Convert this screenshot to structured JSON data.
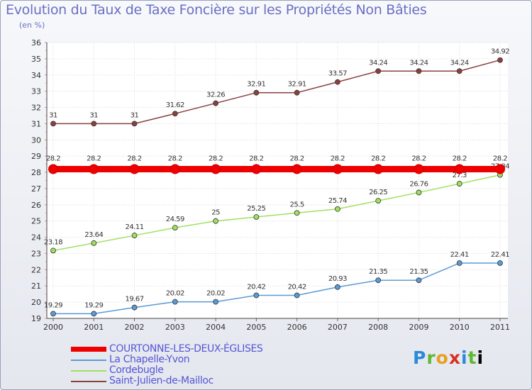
{
  "title": "Evolution du Taux de Taxe Foncière sur les Propriétés Non Bâties",
  "unit": "(en %)",
  "logo": "Proxiti",
  "chart_data": {
    "type": "line",
    "title": "Evolution du Taux de Taxe Foncière sur les Propriétés Non Bâties",
    "ylabel": "(en %)",
    "xlabel": "",
    "ylim": [
      19,
      36
    ],
    "yticks": [
      19,
      20,
      21,
      22,
      23,
      24,
      25,
      26,
      27,
      28,
      29,
      30,
      31,
      32,
      33,
      34,
      35,
      36
    ],
    "x": [
      "2000",
      "2001",
      "2002",
      "2003",
      "2004",
      "2005",
      "2006",
      "2007",
      "2008",
      "2009",
      "2010",
      "2011"
    ],
    "series": [
      {
        "name": "COURTONNE-LES-DEUX-ÉGLISES",
        "color": "#ee0000",
        "values": [
          28.2,
          28.2,
          28.2,
          28.2,
          28.2,
          28.2,
          28.2,
          28.2,
          28.2,
          28.2,
          28.2,
          28.2
        ],
        "labels": [
          "28.2",
          "28.2",
          "28.2",
          "28.2",
          "28.2",
          "28.2",
          "28.2",
          "28.2",
          "28.2",
          "28.2",
          "28.2",
          "28.2"
        ]
      },
      {
        "name": "La Chapelle-Yvon",
        "color": "#5b9bd5",
        "values": [
          19.29,
          19.29,
          19.67,
          20.02,
          20.02,
          20.42,
          20.42,
          20.93,
          21.35,
          21.35,
          22.41,
          22.41
        ],
        "labels": [
          "19.29",
          "19.29",
          "19.67",
          "20.02",
          "20.02",
          "20.42",
          "20.42",
          "20.93",
          "21.35",
          "21.35",
          "22.41",
          "22.41"
        ]
      },
      {
        "name": "Cordebugle",
        "color": "#a0e060",
        "values": [
          23.18,
          23.64,
          24.11,
          24.59,
          25,
          25.25,
          25.5,
          25.74,
          26.25,
          26.76,
          27.3,
          27.84
        ],
        "labels": [
          "23.18",
          "23.64",
          "24.11",
          "24.59",
          "25",
          "25.25",
          "25.5",
          "25.74",
          "26.25",
          "26.76",
          "27.3",
          "27.84"
        ]
      },
      {
        "name": "Saint-Julien-de-Mailloc",
        "color": "#8b4040",
        "values": [
          31,
          31,
          31,
          31.62,
          32.26,
          32.91,
          32.91,
          33.57,
          34.24,
          34.24,
          34.24,
          34.92
        ],
        "labels": [
          "31",
          "31",
          "31",
          "31.62",
          "32.26",
          "32.91",
          "32.91",
          "33.57",
          "34.24",
          "34.24",
          "34.24",
          "34.92"
        ]
      }
    ],
    "legend_position": "bottom-left"
  }
}
